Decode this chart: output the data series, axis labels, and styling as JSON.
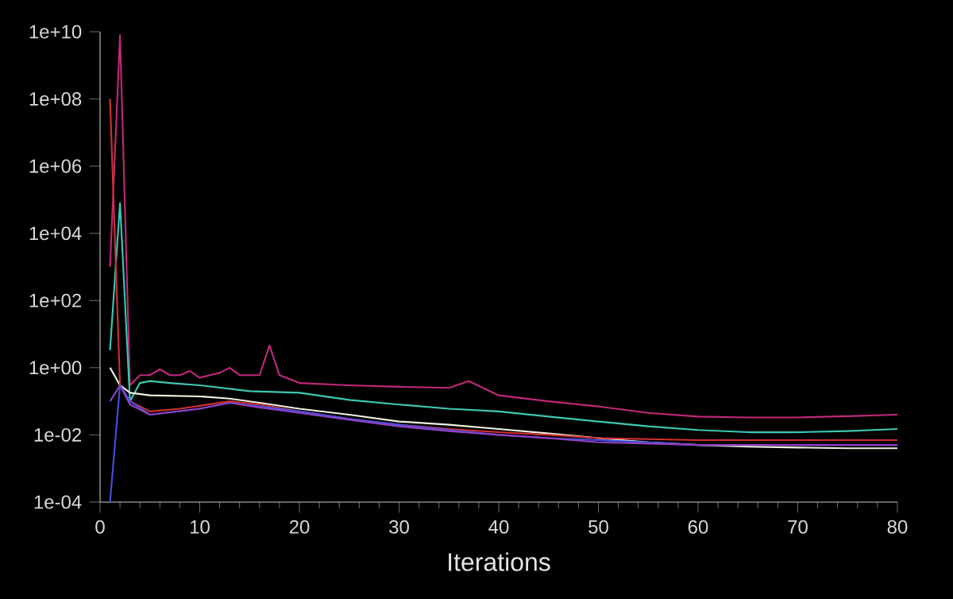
{
  "chart_data": {
    "type": "line",
    "xlabel": "Iterations",
    "log": "y",
    "grid": false,
    "marker": "none",
    "line_style": "solid",
    "xlim": [
      0,
      80
    ],
    "xticks": [
      0,
      10,
      20,
      30,
      40,
      50,
      60,
      70,
      80
    ],
    "ylim": [
      0.0001,
      10000000000
    ],
    "yticks": [
      {
        "value": 0.0001,
        "label": "1e-04"
      },
      {
        "value": 0.01,
        "label": "1e-02"
      },
      {
        "value": 1,
        "label": "1e+00"
      },
      {
        "value": 100,
        "label": "1e+02"
      },
      {
        "value": 10000,
        "label": "1e+04"
      },
      {
        "value": 1000000,
        "label": "1e+06"
      },
      {
        "value": 100000000,
        "label": "1e+08"
      },
      {
        "value": 10000000000,
        "label": "1e+10"
      }
    ],
    "series": [
      {
        "color": "#c0287a",
        "x": [
          1,
          2,
          3,
          4,
          5,
          6,
          7,
          8,
          9,
          10,
          11,
          12,
          13,
          14,
          15,
          16,
          17,
          18,
          20,
          25,
          30,
          35,
          37,
          40,
          45,
          50,
          55,
          60,
          65,
          70,
          75,
          80
        ],
        "values": [
          1000,
          8000000000,
          0.3,
          0.6,
          0.6,
          0.9,
          0.6,
          0.6,
          0.8,
          0.5,
          0.6,
          0.7,
          1.0,
          0.6,
          0.6,
          0.6,
          4.6,
          0.6,
          0.35,
          0.3,
          0.27,
          0.25,
          0.4,
          0.15,
          0.1,
          0.07,
          0.045,
          0.035,
          0.033,
          0.033,
          0.036,
          0.04
        ]
      },
      {
        "color": "#3cc8b4",
        "x": [
          1,
          2,
          3,
          4,
          5,
          7,
          10,
          15,
          20,
          25,
          30,
          35,
          40,
          45,
          50,
          55,
          60,
          65,
          70,
          75,
          80
        ],
        "values": [
          3.3,
          80000,
          0.1,
          0.35,
          0.4,
          0.35,
          0.3,
          0.2,
          0.18,
          0.11,
          0.08,
          0.06,
          0.05,
          0.035,
          0.025,
          0.018,
          0.014,
          0.012,
          0.012,
          0.013,
          0.015
        ]
      },
      {
        "color": "#f0f0e0",
        "x": [
          1,
          2,
          3,
          5,
          10,
          13,
          16,
          20,
          25,
          30,
          35,
          40,
          45,
          50,
          55,
          60,
          65,
          70,
          75,
          80
        ],
        "values": [
          1.0,
          0.3,
          0.18,
          0.15,
          0.14,
          0.12,
          0.09,
          0.06,
          0.04,
          0.025,
          0.02,
          0.015,
          0.011,
          0.008,
          0.006,
          0.005,
          0.0045,
          0.0042,
          0.004,
          0.004
        ]
      },
      {
        "color": "#d03030",
        "x": [
          1,
          2,
          3,
          5,
          8,
          13,
          16,
          20,
          25,
          30,
          35,
          40,
          45,
          50,
          55,
          60,
          70,
          80
        ],
        "values": [
          100000000,
          0.3,
          0.1,
          0.05,
          0.06,
          0.1,
          0.08,
          0.05,
          0.03,
          0.02,
          0.015,
          0.012,
          0.01,
          0.008,
          0.0075,
          0.007,
          0.007,
          0.007
        ]
      },
      {
        "color": "#4050e0",
        "x": [
          1,
          2,
          3,
          5,
          10,
          13,
          16,
          20,
          25,
          30,
          35,
          40,
          45,
          50,
          55,
          60,
          70,
          80
        ],
        "values": [
          0.0001,
          0.3,
          0.1,
          0.04,
          0.06,
          0.09,
          0.07,
          0.05,
          0.03,
          0.02,
          0.014,
          0.01,
          0.008,
          0.007,
          0.006,
          0.005,
          0.005,
          0.005
        ]
      },
      {
        "color": "#9040c0",
        "x": [
          1,
          2,
          3,
          5,
          10,
          13,
          16,
          20,
          25,
          30,
          35,
          40,
          45,
          50,
          55,
          60,
          70,
          80
        ],
        "values": [
          0.1,
          0.3,
          0.08,
          0.04,
          0.06,
          0.09,
          0.065,
          0.045,
          0.028,
          0.018,
          0.013,
          0.01,
          0.008,
          0.006,
          0.0055,
          0.005,
          0.005,
          0.005
        ]
      }
    ]
  }
}
